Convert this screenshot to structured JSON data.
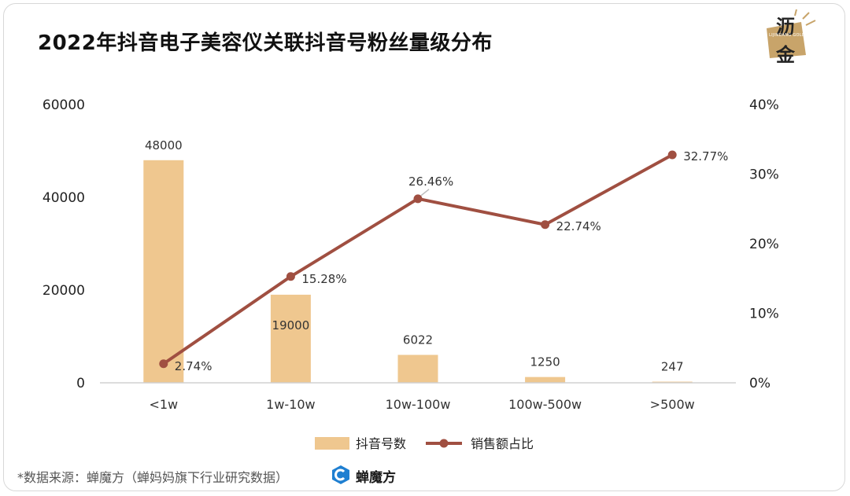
{
  "title": "2022年抖音电子美容仪关联抖音号粉丝量级分布",
  "logo": {
    "chars": [
      "沥",
      "金"
    ],
    "english": "LIJINDANG GOLD",
    "color": "#c8a46a"
  },
  "source_text": "*数据来源：蝉魔方（蝉妈妈旗下行业研究数据）",
  "brand": {
    "name": "蝉魔方",
    "icon": "chanmofang-logo-icon",
    "color": "#1f7fd1"
  },
  "chart_data": {
    "type": "bar",
    "categories": [
      "<1w",
      "1w-10w",
      "10w-100w",
      "100w-500w",
      ">500w"
    ],
    "series": [
      {
        "name": "抖音号数",
        "type": "bar",
        "axis": "left",
        "values": [
          48000,
          19000,
          6022,
          1250,
          247
        ],
        "labels": [
          "48000",
          "19000",
          "6022",
          "1250",
          "247"
        ],
        "color": "#efc78f"
      },
      {
        "name": "销售额占比",
        "type": "line",
        "axis": "right",
        "values": [
          2.74,
          15.28,
          26.46,
          22.74,
          32.77
        ],
        "labels": [
          "2.74%",
          "15.28%",
          "26.46%",
          "22.74%",
          "32.77%"
        ],
        "color": "#a04f41"
      }
    ],
    "y_left": {
      "ticks": [
        0,
        20000,
        40000,
        60000
      ],
      "tick_labels": [
        "0",
        "20000",
        "40000",
        "60000"
      ],
      "ylim": [
        0,
        60000
      ]
    },
    "y_right": {
      "ticks": [
        0,
        10,
        20,
        30,
        40
      ],
      "tick_labels": [
        "0%",
        "10%",
        "20%",
        "30%",
        "40%"
      ],
      "ylim": [
        0,
        40
      ]
    },
    "grid": false,
    "legend_position": "bottom-center"
  }
}
